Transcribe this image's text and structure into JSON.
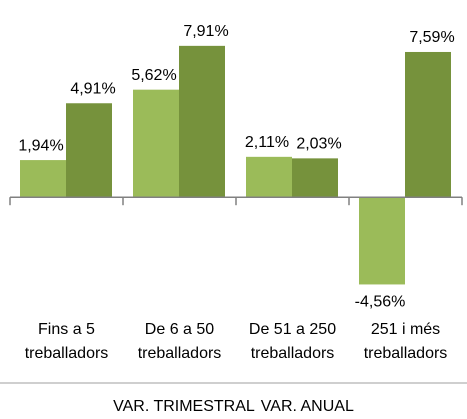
{
  "chart_data": {
    "type": "bar",
    "categories": [
      [
        "Fins a 5",
        "treballadors"
      ],
      [
        "De 6 a 50",
        "treballadors"
      ],
      [
        "De 51 a 250",
        "treballadors"
      ],
      [
        "251 i més",
        "treballadors"
      ]
    ],
    "series": [
      {
        "name": "VAR. TRIMESTRAL",
        "color": "#9bbb59",
        "values": [
          1.94,
          5.62,
          2.11,
          -4.56
        ],
        "value_labels": [
          "1,94%",
          "5,62%",
          "2,11%",
          "-4,56%"
        ]
      },
      {
        "name": "VAR. ANUAL",
        "color": "#76923c",
        "values": [
          4.91,
          7.91,
          2.03,
          7.59
        ],
        "value_labels": [
          "4,91%",
          "7,91%",
          "2,03%",
          "7,59%"
        ]
      }
    ],
    "ylim": [
      -6,
      9
    ]
  }
}
